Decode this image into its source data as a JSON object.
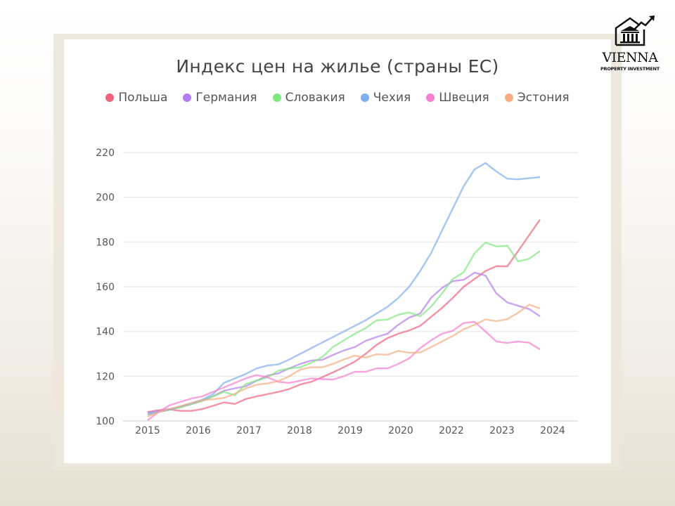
{
  "logo": {
    "name": "VIENNA",
    "subtitle": "PROPERTY INVESTMENT",
    "icon": "house-columns-arrow-icon"
  },
  "chart_data": {
    "type": "line",
    "title": "Индекс цен на жилье (страны ЕС)",
    "xlabel": "",
    "ylabel": "",
    "ylim": [
      100,
      220
    ],
    "yticks": [
      "100",
      "120",
      "140",
      "160",
      "180",
      "200",
      "220"
    ],
    "xticks": [
      "2015",
      "2016",
      "2017",
      "2018",
      "2019",
      "2020",
      "2022",
      "2023",
      "2024"
    ],
    "grid": "horizontal",
    "legend": "top",
    "x": [
      "2015-Q1",
      "2015-Q2",
      "2015-Q3",
      "2015-Q4",
      "2016-Q1",
      "2016-Q2",
      "2016-Q3",
      "2016-Q4",
      "2017-Q1",
      "2017-Q2",
      "2017-Q3",
      "2017-Q4",
      "2018-Q1",
      "2018-Q2",
      "2018-Q3",
      "2018-Q4",
      "2019-Q1",
      "2019-Q2",
      "2019-Q3",
      "2019-Q4",
      "2020-Q1",
      "2020-Q2",
      "2020-Q3",
      "2020-Q4",
      "2021-Q1",
      "2021-Q2",
      "2021-Q3",
      "2021-Q4",
      "2022-Q1",
      "2022-Q2",
      "2022-Q3",
      "2022-Q4",
      "2023-Q1",
      "2023-Q2",
      "2023-Q3",
      "2023-Q4",
      "2024-Q1"
    ],
    "series": [
      {
        "name": "Польша",
        "color": "#f0637f",
        "values": [
          104,
          104.8,
          105.2,
          104.5,
          104.5,
          105.3,
          106.8,
          108.3,
          107.6,
          109.8,
          111,
          112,
          113,
          114.3,
          116.3,
          117.5,
          119.5,
          121.7,
          124,
          126.5,
          130,
          134,
          137,
          139,
          140.5,
          142.5,
          146.5,
          150.5,
          155,
          160,
          163.5,
          167,
          169.2,
          169.1,
          176,
          183,
          190
        ]
      },
      {
        "name": "Германия",
        "color": "#b57bf0",
        "values": [
          103.8,
          104.5,
          105.3,
          106.3,
          107.5,
          109,
          111,
          113.5,
          114.6,
          115.5,
          118,
          120.3,
          121.3,
          123.5,
          125.5,
          127,
          127.3,
          129.5,
          131.5,
          133,
          135.8,
          137.5,
          139,
          143,
          146.2,
          148,
          155,
          159.4,
          162.5,
          163.1,
          166.3,
          165,
          157,
          153,
          151.5,
          150,
          146.8
        ]
      },
      {
        "name": "Словакия",
        "color": "#7ee87e",
        "values": [
          102.8,
          104,
          105,
          106,
          107.5,
          109,
          111,
          113,
          111.5,
          116.5,
          118,
          119.5,
          122.5,
          123.5,
          124,
          126,
          128.5,
          133,
          136,
          139,
          141.5,
          145,
          145.3,
          147.5,
          148.5,
          146.8,
          151,
          157,
          163.5,
          166.5,
          175,
          179.8,
          178,
          178.3,
          171.3,
          172.5,
          176
        ]
      },
      {
        "name": "Чехия",
        "color": "#7eaef0",
        "values": [
          103,
          104,
          105,
          106.5,
          108,
          109.5,
          112,
          117,
          119,
          121,
          123.5,
          124.8,
          125.3,
          127.5,
          130,
          132.5,
          135,
          137.5,
          140,
          142.5,
          145,
          148,
          151,
          155,
          160,
          167,
          175,
          185,
          195,
          205,
          212.5,
          215.3,
          211.5,
          208.3,
          208,
          208.5,
          209
        ]
      },
      {
        "name": "Швеция",
        "color": "#f57fd0",
        "values": [
          100.3,
          104,
          107,
          108.5,
          110,
          111,
          113,
          115,
          117,
          119,
          120.5,
          119.5,
          117.5,
          117,
          118,
          119,
          118.7,
          118.5,
          120,
          122,
          122,
          123.5,
          123.5,
          125.5,
          128,
          132.5,
          136,
          139,
          140.3,
          143.8,
          144.3,
          140,
          135.5,
          134.9,
          135.5,
          135,
          132
        ]
      },
      {
        "name": "Эстония",
        "color": "#f7ad82",
        "values": [
          102,
          104,
          105.3,
          106.5,
          108,
          109.3,
          109.7,
          110.3,
          112.2,
          114.5,
          116.2,
          116.8,
          117.8,
          120,
          123,
          124,
          124,
          125.5,
          127.5,
          129.2,
          128.3,
          129.8,
          129.6,
          131.3,
          130.5,
          130.6,
          133,
          135.5,
          138,
          141,
          143,
          145.4,
          144.6,
          145.5,
          148.4,
          152,
          150.3
        ]
      }
    ]
  }
}
